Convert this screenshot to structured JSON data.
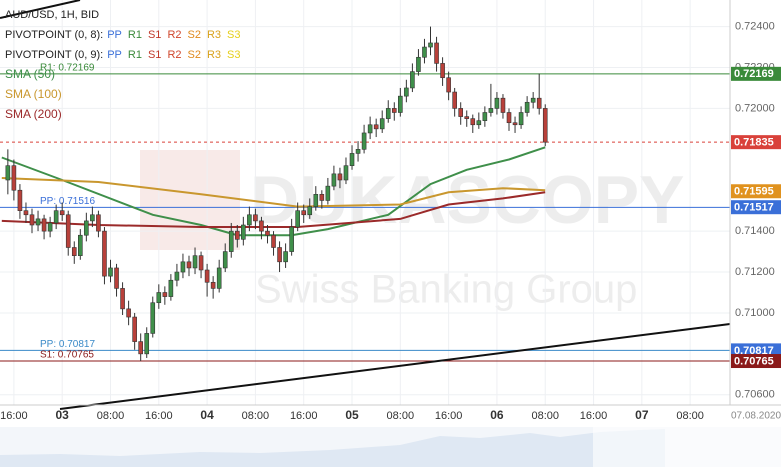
{
  "chart_data": {
    "type": "candlestick",
    "title": "AUD/USD, 1H, BID",
    "pivot_legends": [
      {
        "label": "PIVOTPOINT (0, 8):",
        "items": [
          {
            "name": "PP",
            "color": "#3a6fd8"
          },
          {
            "name": "R1",
            "color": "#3a8a3a"
          },
          {
            "name": "S1",
            "color": "#c0392b"
          },
          {
            "name": "R2",
            "color": "#d0452b"
          },
          {
            "name": "S2",
            "color": "#e08a1e"
          },
          {
            "name": "R3",
            "color": "#d9a21b"
          },
          {
            "name": "S3",
            "color": "#e5cf1a"
          }
        ]
      },
      {
        "label": "PIVOTPOINT (0, 9):",
        "items": [
          {
            "name": "PP",
            "color": "#3a6fd8"
          },
          {
            "name": "R1",
            "color": "#3a8a3a"
          },
          {
            "name": "S1",
            "color": "#c0392b"
          },
          {
            "name": "R2",
            "color": "#d0452b"
          },
          {
            "name": "S2",
            "color": "#e08a1e"
          },
          {
            "name": "R3",
            "color": "#d9a21b"
          },
          {
            "name": "S3",
            "color": "#e5cf1a"
          }
        ]
      }
    ],
    "watermark": [
      "DUKASCOPY",
      "Swiss Banking Group"
    ],
    "xlim": [
      -10.3,
      110.6
    ],
    "ylim": [
      0.7055,
      0.7253
    ],
    "xticks": [
      {
        "value": -8,
        "label": "16:00"
      },
      {
        "value": 0,
        "label": "03"
      },
      {
        "value": 8,
        "label": "08:00"
      },
      {
        "value": 16,
        "label": "16:00"
      },
      {
        "value": 24,
        "label": "04"
      },
      {
        "value": 32,
        "label": "08:00"
      },
      {
        "value": 40,
        "label": "16:00"
      },
      {
        "value": 48,
        "label": "05"
      },
      {
        "value": 56,
        "label": "08:00"
      },
      {
        "value": 64,
        "label": "16:00"
      },
      {
        "value": 72,
        "label": "06"
      },
      {
        "value": 80,
        "label": "08:00"
      },
      {
        "value": 88,
        "label": "16:00"
      },
      {
        "value": 96,
        "label": "07"
      },
      {
        "value": 104,
        "label": "08:00"
      }
    ],
    "date_label": "07.08.2020",
    "yticks": [
      {
        "value": 0.724,
        "label": "0.72400"
      },
      {
        "value": 0.722,
        "label": "0.72200"
      },
      {
        "value": 0.72,
        "label": "0.72000"
      },
      {
        "value": 0.714,
        "label": "0.71400"
      },
      {
        "value": 0.712,
        "label": "0.71200"
      },
      {
        "value": 0.71,
        "label": "0.71000"
      },
      {
        "value": 0.706,
        "label": "0.70600"
      }
    ],
    "grid": true,
    "up_color": "#3f8f4a",
    "down_color": "#b8403a",
    "x": [
      -9,
      -8,
      -7,
      -6,
      -5,
      -4,
      -3,
      -2,
      -1,
      0,
      1,
      2,
      3,
      4,
      5,
      6,
      7,
      8,
      9,
      10,
      11,
      12,
      13,
      14,
      15,
      16,
      17,
      18,
      19,
      20,
      21,
      22,
      23,
      24,
      25,
      26,
      27,
      28,
      29,
      30,
      31,
      32,
      33,
      34,
      35,
      36,
      37,
      38,
      39,
      40,
      41,
      42,
      43,
      44,
      45,
      46,
      47,
      48,
      49,
      50,
      51,
      52,
      53,
      54,
      55,
      56,
      57,
      58,
      59,
      60,
      61,
      62,
      63,
      64,
      65,
      66,
      67,
      68,
      69,
      70,
      71,
      72,
      73,
      74,
      75,
      76,
      77,
      78,
      79,
      80
    ],
    "candles": [
      [
        0.7165,
        0.718,
        0.7158,
        0.7172
      ],
      [
        0.7172,
        0.7175,
        0.7155,
        0.716
      ],
      [
        0.716,
        0.7163,
        0.7146,
        0.715
      ],
      [
        0.715,
        0.7154,
        0.7144,
        0.7148
      ],
      [
        0.7148,
        0.7151,
        0.7139,
        0.7143
      ],
      [
        0.7143,
        0.715,
        0.714,
        0.7146
      ],
      [
        0.7146,
        0.7148,
        0.7136,
        0.714
      ],
      [
        0.714,
        0.7147,
        0.7137,
        0.7144
      ],
      [
        0.7144,
        0.7153,
        0.7141,
        0.715
      ],
      [
        0.715,
        0.7154,
        0.7145,
        0.7148
      ],
      [
        0.7148,
        0.715,
        0.7128,
        0.7132
      ],
      [
        0.7132,
        0.7135,
        0.7124,
        0.7128
      ],
      [
        0.7128,
        0.7141,
        0.7126,
        0.7138
      ],
      [
        0.7138,
        0.7149,
        0.7135,
        0.7145
      ],
      [
        0.7145,
        0.7152,
        0.7142,
        0.7148
      ],
      [
        0.7148,
        0.715,
        0.7137,
        0.714
      ],
      [
        0.714,
        0.7142,
        0.7114,
        0.7118
      ],
      [
        0.7118,
        0.7126,
        0.7115,
        0.7122
      ],
      [
        0.7122,
        0.7124,
        0.7108,
        0.7112
      ],
      [
        0.7112,
        0.7115,
        0.7099,
        0.7102
      ],
      [
        0.7102,
        0.7106,
        0.7094,
        0.7098
      ],
      [
        0.7098,
        0.71,
        0.7082,
        0.7086
      ],
      [
        0.7086,
        0.709,
        0.70765,
        0.708
      ],
      [
        0.708,
        0.7093,
        0.7078,
        0.709
      ],
      [
        0.709,
        0.7108,
        0.7088,
        0.7105
      ],
      [
        0.7105,
        0.7114,
        0.7102,
        0.711
      ],
      [
        0.711,
        0.7113,
        0.7104,
        0.7108
      ],
      [
        0.7108,
        0.7119,
        0.7106,
        0.7116
      ],
      [
        0.7116,
        0.7124,
        0.7113,
        0.712
      ],
      [
        0.712,
        0.7129,
        0.7117,
        0.7125
      ],
      [
        0.7125,
        0.7128,
        0.7118,
        0.7122
      ],
      [
        0.7122,
        0.7132,
        0.7119,
        0.7128
      ],
      [
        0.7128,
        0.713,
        0.7117,
        0.7121
      ],
      [
        0.7121,
        0.7124,
        0.7108,
        0.7115
      ],
      [
        0.7115,
        0.7118,
        0.7107,
        0.7112
      ],
      [
        0.7112,
        0.7126,
        0.711,
        0.7122
      ],
      [
        0.7122,
        0.7134,
        0.712,
        0.713
      ],
      [
        0.713,
        0.7144,
        0.7127,
        0.714
      ],
      [
        0.714,
        0.7143,
        0.7132,
        0.7136
      ],
      [
        0.7136,
        0.7147,
        0.7133,
        0.7143
      ],
      [
        0.7143,
        0.7152,
        0.714,
        0.7148
      ],
      [
        0.7148,
        0.7151,
        0.7141,
        0.7145
      ],
      [
        0.7145,
        0.7147,
        0.7136,
        0.714
      ],
      [
        0.714,
        0.7143,
        0.7134,
        0.7138
      ],
      [
        0.7138,
        0.714,
        0.7128,
        0.7132
      ],
      [
        0.7132,
        0.7135,
        0.712,
        0.7125
      ],
      [
        0.7125,
        0.7134,
        0.7122,
        0.713
      ],
      [
        0.713,
        0.7146,
        0.7128,
        0.7142
      ],
      [
        0.7142,
        0.7154,
        0.714,
        0.715
      ],
      [
        0.715,
        0.7153,
        0.7144,
        0.7148
      ],
      [
        0.7148,
        0.7156,
        0.7146,
        0.7152
      ],
      [
        0.7152,
        0.7162,
        0.715,
        0.7158
      ],
      [
        0.7158,
        0.716,
        0.7151,
        0.7155
      ],
      [
        0.7155,
        0.7166,
        0.7153,
        0.7162
      ],
      [
        0.7162,
        0.7172,
        0.716,
        0.7168
      ],
      [
        0.7168,
        0.7171,
        0.7161,
        0.7165
      ],
      [
        0.7165,
        0.7176,
        0.7163,
        0.7172
      ],
      [
        0.7172,
        0.7182,
        0.717,
        0.7178
      ],
      [
        0.7178,
        0.7184,
        0.7174,
        0.718
      ],
      [
        0.718,
        0.7192,
        0.7178,
        0.7188
      ],
      [
        0.7188,
        0.7196,
        0.7185,
        0.7192
      ],
      [
        0.7192,
        0.7195,
        0.7186,
        0.719
      ],
      [
        0.719,
        0.7199,
        0.7188,
        0.7195
      ],
      [
        0.7195,
        0.7204,
        0.7193,
        0.72
      ],
      [
        0.72,
        0.7203,
        0.7194,
        0.7198
      ],
      [
        0.7198,
        0.721,
        0.7196,
        0.7206
      ],
      [
        0.7206,
        0.7214,
        0.7203,
        0.721
      ],
      [
        0.721,
        0.7222,
        0.7208,
        0.7218
      ],
      [
        0.7218,
        0.7229,
        0.7216,
        0.7225
      ],
      [
        0.7225,
        0.7234,
        0.7222,
        0.723
      ],
      [
        0.723,
        0.724,
        0.7226,
        0.7232
      ],
      [
        0.7232,
        0.7235,
        0.7218,
        0.7222
      ],
      [
        0.7222,
        0.7225,
        0.7211,
        0.7215
      ],
      [
        0.7215,
        0.7218,
        0.7204,
        0.7208
      ],
      [
        0.7208,
        0.721,
        0.7196,
        0.72
      ],
      [
        0.72,
        0.7203,
        0.7192,
        0.7196
      ],
      [
        0.7196,
        0.7199,
        0.7191,
        0.7195
      ],
      [
        0.7195,
        0.7197,
        0.7188,
        0.7192
      ],
      [
        0.7192,
        0.7198,
        0.719,
        0.7194
      ],
      [
        0.7194,
        0.7201,
        0.7191,
        0.7198
      ],
      [
        0.7198,
        0.7212,
        0.7196,
        0.72
      ],
      [
        0.72,
        0.7208,
        0.7197,
        0.7205
      ],
      [
        0.7205,
        0.7207,
        0.7195,
        0.7198
      ],
      [
        0.7198,
        0.72,
        0.7189,
        0.7193
      ],
      [
        0.7193,
        0.7196,
        0.7188,
        0.7192
      ],
      [
        0.7192,
        0.7201,
        0.719,
        0.7198
      ],
      [
        0.7198,
        0.7206,
        0.7196,
        0.7203
      ],
      [
        0.7203,
        0.7208,
        0.72,
        0.7205
      ],
      [
        0.7205,
        0.7217,
        0.7197,
        0.72
      ],
      [
        0.72,
        0.7202,
        0.71815,
        0.71835
      ]
    ],
    "series": [
      {
        "name": "SMA (50)",
        "color": "#3f8f4a",
        "x": [
          -10,
          0,
          15,
          23,
          29,
          38,
          44,
          54,
          61,
          67,
          74,
          80
        ],
        "values": [
          0.7176,
          0.7165,
          0.7148,
          0.7143,
          0.7138,
          0.7138,
          0.7141,
          0.7148,
          0.7163,
          0.717,
          0.7175,
          0.7181
        ]
      },
      {
        "name": "SMA (100)",
        "color": "#c9972e",
        "x": [
          -10,
          6,
          23,
          39,
          56,
          64,
          73,
          80
        ],
        "values": [
          0.7166,
          0.7164,
          0.7158,
          0.7152,
          0.7153,
          0.7159,
          0.7161,
          0.716
        ]
      },
      {
        "name": "SMA (200)",
        "color": "#9b2a2a",
        "x": [
          -10,
          6,
          23,
          39,
          56,
          64,
          73,
          80
        ],
        "values": [
          0.7145,
          0.7143,
          0.7142,
          0.7142,
          0.7146,
          0.7153,
          0.7156,
          0.7159
        ]
      }
    ],
    "levels": [
      {
        "label": "R1: 0.72169",
        "value": 0.72169,
        "color": "#3a8a3a"
      },
      {
        "label": "PP: 0.71516",
        "value": 0.71516,
        "color": "#3a6fd8"
      },
      {
        "label": "PP: 0.70817",
        "value": 0.70817,
        "color": "#3a8ac8"
      },
      {
        "label": "S1: 0.70765",
        "value": 0.70765,
        "color": "#8b1a1a"
      }
    ],
    "price_tags": [
      {
        "price": 0.72169,
        "color": "#3a8a3a"
      },
      {
        "price": 0.71835,
        "color": "#d9413a",
        "line": "dashed"
      },
      {
        "price": 0.71595,
        "color": "#e0921e"
      },
      {
        "price": 0.71517,
        "color": "#3a6fd8"
      },
      {
        "price": 0.70817,
        "color": "#3a6fd8"
      },
      {
        "price": 0.70765,
        "color": "#8b1a1a"
      }
    ]
  }
}
